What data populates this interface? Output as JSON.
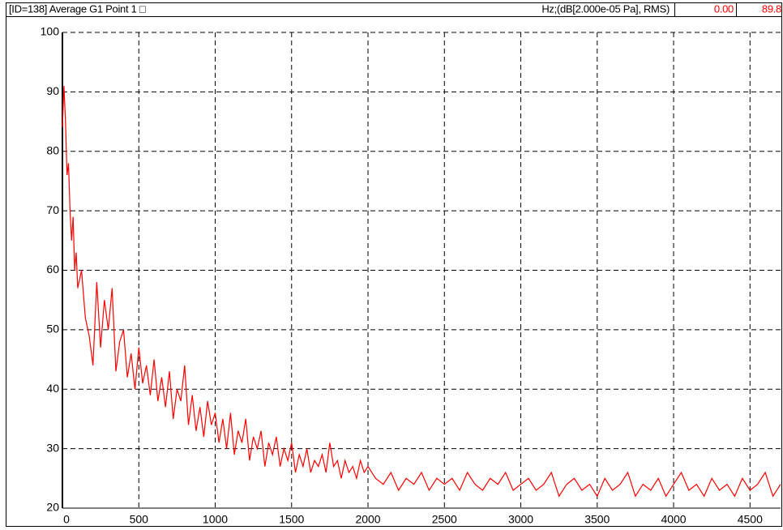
{
  "chart_data": {
    "type": "line",
    "title": "[ID=138] Average G1 Point 1 □",
    "unit_label": "Hz;(dB[2.000e-05 Pa], RMS)",
    "readouts": [
      "0.00",
      "89.8"
    ],
    "x": [
      0,
      10,
      20,
      30,
      40,
      50,
      60,
      70,
      80,
      90,
      100,
      125,
      150,
      175,
      200,
      225,
      250,
      275,
      300,
      325,
      350,
      375,
      400,
      425,
      450,
      475,
      500,
      525,
      550,
      575,
      600,
      625,
      650,
      675,
      700,
      725,
      750,
      775,
      800,
      825,
      850,
      875,
      900,
      925,
      950,
      975,
      1000,
      1025,
      1050,
      1075,
      1100,
      1125,
      1150,
      1175,
      1200,
      1225,
      1250,
      1275,
      1300,
      1325,
      1350,
      1375,
      1400,
      1425,
      1450,
      1475,
      1500,
      1525,
      1550,
      1575,
      1600,
      1625,
      1650,
      1675,
      1700,
      1725,
      1750,
      1775,
      1800,
      1825,
      1850,
      1875,
      1900,
      1925,
      1950,
      1975,
      2000,
      2050,
      2100,
      2150,
      2200,
      2250,
      2300,
      2350,
      2400,
      2450,
      2500,
      2550,
      2600,
      2650,
      2700,
      2750,
      2800,
      2850,
      2900,
      2950,
      3000,
      3050,
      3100,
      3150,
      3200,
      3250,
      3300,
      3350,
      3400,
      3450,
      3500,
      3550,
      3600,
      3650,
      3700,
      3750,
      3800,
      3850,
      3900,
      3950,
      4000,
      4050,
      4100,
      4150,
      4200,
      4250,
      4300,
      4350,
      4400,
      4450,
      4500,
      4550,
      4600,
      4650,
      4700
    ],
    "series": [
      {
        "name": "Average G1 Point 1",
        "color": "#ff0000",
        "values": [
          84,
          91,
          85,
          76,
          78,
          70,
          65,
          69,
          60,
          63,
          57,
          60,
          52,
          49,
          44,
          58,
          47,
          55,
          50,
          57,
          43,
          48,
          50,
          42,
          46,
          40,
          47,
          41,
          44,
          39,
          45,
          38,
          42,
          37,
          43,
          35,
          40,
          38,
          44,
          34,
          39,
          33,
          37,
          32,
          38,
          34,
          36,
          31,
          35,
          30,
          36,
          29,
          33,
          31,
          35,
          28,
          32,
          30,
          33,
          27,
          31,
          29,
          32,
          27,
          30,
          28,
          31,
          26,
          29,
          27,
          30,
          26,
          28,
          27,
          29,
          26,
          31,
          27,
          28,
          25,
          28,
          26,
          27,
          25,
          28,
          26,
          27,
          25,
          24,
          26,
          23,
          25,
          24,
          26,
          23,
          25,
          24,
          25,
          23,
          26,
          24,
          23,
          25,
          24,
          26,
          23,
          24,
          25,
          23,
          24,
          26,
          22,
          24,
          25,
          23,
          24,
          22,
          25,
          23,
          24,
          26,
          22,
          24,
          23,
          25,
          22,
          24,
          26,
          23,
          24,
          22,
          25,
          23,
          24,
          22,
          25,
          23,
          24,
          26,
          22,
          24
        ]
      }
    ],
    "xlim": [
      0,
      4700
    ],
    "ylim": [
      20,
      100
    ],
    "xticks": [
      0,
      500,
      1000,
      1500,
      2000,
      2500,
      3000,
      3500,
      4000,
      4500
    ],
    "yticks": [
      20,
      30,
      40,
      50,
      60,
      70,
      80,
      90,
      100
    ],
    "grid": true
  }
}
